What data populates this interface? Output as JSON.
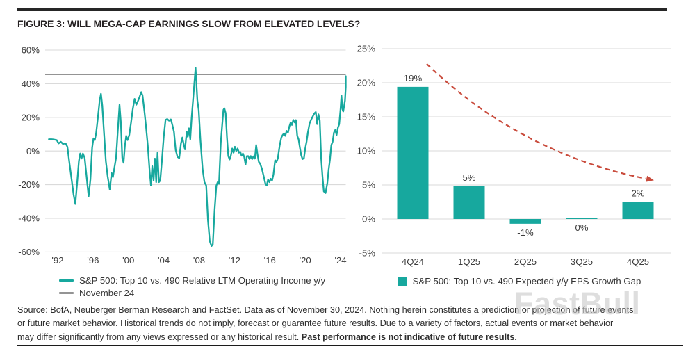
{
  "title": "FIGURE 3: WILL MEGA-CAP EARNINGS SLOW FROM ELEVATED LEVELS?",
  "watermark": "FastBull",
  "colors": {
    "teal": "#17A89E",
    "reference_gray": "#949494",
    "grid": "#DADADA",
    "arrow_red": "#C94B3C",
    "text_dark": "#2B2B2B"
  },
  "chart_data": [
    {
      "type": "line",
      "name": "sp500-top10-vs-490-relative-ltm-operating-income",
      "ylim": [
        -60,
        60
      ],
      "grid": true,
      "legend_position": "bottom-left",
      "y_ticks": [
        {
          "label": "60%",
          "value": 60
        },
        {
          "label": "40%",
          "value": 40
        },
        {
          "label": "20%",
          "value": 20
        },
        {
          "label": "0%",
          "value": 0
        },
        {
          "label": "-20%",
          "value": -20
        },
        {
          "label": "-40%",
          "value": -40
        },
        {
          "label": "-60%",
          "value": -60
        }
      ],
      "x_ticks": [
        {
          "label": "'92",
          "year": 1992
        },
        {
          "label": "'96",
          "year": 1996
        },
        {
          "label": "'00",
          "year": 2000
        },
        {
          "label": "'04",
          "year": 2004
        },
        {
          "label": "'08",
          "year": 2008
        },
        {
          "label": "'12",
          "year": 2012
        },
        {
          "label": "'16",
          "year": 2016
        },
        {
          "label": "'20",
          "year": 2020
        },
        {
          "label": "'24",
          "year": 2024
        }
      ],
      "reference_line": {
        "label": "November 24",
        "value": 45.5
      },
      "legend": [
        {
          "label": "S&P 500: Top 10 vs. 490 Relative LTM Operating Income y/y",
          "marker": "line",
          "color_key": "teal"
        },
        {
          "label": "November 24",
          "marker": "line",
          "color_key": "reference_gray"
        }
      ],
      "series": [
        {
          "name": "S&P 500: Top 10 vs. 490 Relative LTM Operating Income y/y",
          "points": [
            [
              1991.0,
              7
            ],
            [
              1991.3,
              7
            ],
            [
              1991.6,
              6.8
            ],
            [
              1991.9,
              6.5
            ],
            [
              1992.1,
              4.5
            ],
            [
              1992.35,
              5.5
            ],
            [
              1992.6,
              4.2
            ],
            [
              1992.9,
              4.6
            ],
            [
              1993.1,
              2.5
            ],
            [
              1993.35,
              -8
            ],
            [
              1993.6,
              -18
            ],
            [
              1993.8,
              -26
            ],
            [
              1994.0,
              -31.5
            ],
            [
              1994.2,
              -19
            ],
            [
              1994.4,
              -6
            ],
            [
              1994.55,
              -1.5
            ],
            [
              1994.7,
              -4.5
            ],
            [
              1994.85,
              -1.5
            ],
            [
              1995.05,
              -4
            ],
            [
              1995.25,
              -14
            ],
            [
              1995.5,
              -27
            ],
            [
              1995.7,
              -17
            ],
            [
              1995.9,
              2
            ],
            [
              1996.05,
              7.5
            ],
            [
              1996.2,
              6.5
            ],
            [
              1996.35,
              10.5
            ],
            [
              1996.55,
              20
            ],
            [
              1996.75,
              30
            ],
            [
              1996.9,
              34
            ],
            [
              1997.05,
              27
            ],
            [
              1997.25,
              10
            ],
            [
              1997.45,
              -6
            ],
            [
              1997.65,
              -15
            ],
            [
              1997.9,
              -23
            ],
            [
              1998.1,
              -13
            ],
            [
              1998.25,
              -15.5
            ],
            [
              1998.4,
              -10.5
            ],
            [
              1998.6,
              -4
            ],
            [
              1998.8,
              12
            ],
            [
              1999.0,
              27.5
            ],
            [
              1999.15,
              17
            ],
            [
              1999.3,
              -4
            ],
            [
              1999.45,
              -7
            ],
            [
              1999.6,
              3
            ],
            [
              1999.75,
              9
            ],
            [
              1999.9,
              6.5
            ],
            [
              2000.1,
              9.5
            ],
            [
              2000.3,
              17
            ],
            [
              2000.5,
              25
            ],
            [
              2000.7,
              31
            ],
            [
              2000.9,
              27.5
            ],
            [
              2001.1,
              30
            ],
            [
              2001.25,
              32
            ],
            [
              2001.45,
              35
            ],
            [
              2001.6,
              33
            ],
            [
              2001.8,
              24
            ],
            [
              2002.0,
              14
            ],
            [
              2002.2,
              3
            ],
            [
              2002.4,
              -12
            ],
            [
              2002.55,
              -20.5
            ],
            [
              2002.7,
              -9
            ],
            [
              2002.85,
              -17.5
            ],
            [
              2003.0,
              -4.5
            ],
            [
              2003.15,
              -18.5
            ],
            [
              2003.3,
              -1
            ],
            [
              2003.45,
              -18.5
            ],
            [
              2003.6,
              -17.5
            ],
            [
              2003.8,
              -5
            ],
            [
              2004.0,
              8.5
            ],
            [
              2004.2,
              18.5
            ],
            [
              2004.4,
              19
            ],
            [
              2004.6,
              18
            ],
            [
              2004.8,
              18.8
            ],
            [
              2004.95,
              16
            ],
            [
              2005.15,
              11.5
            ],
            [
              2005.35,
              0.5
            ],
            [
              2005.55,
              -3.5
            ],
            [
              2005.75,
              -4.2
            ],
            [
              2005.95,
              4.5
            ],
            [
              2006.1,
              8
            ],
            [
              2006.25,
              4
            ],
            [
              2006.4,
              1
            ],
            [
              2006.6,
              11.5
            ],
            [
              2006.72,
              8.5
            ],
            [
              2006.85,
              13.5
            ],
            [
              2007.0,
              7
            ],
            [
              2007.15,
              19.5
            ],
            [
              2007.35,
              33
            ],
            [
              2007.6,
              49.5
            ],
            [
              2007.8,
              30
            ],
            [
              2007.95,
              24.5
            ],
            [
              2008.15,
              6.5
            ],
            [
              2008.4,
              -11
            ],
            [
              2008.6,
              -18.5
            ],
            [
              2008.8,
              -20.5
            ],
            [
              2009.0,
              -41
            ],
            [
              2009.2,
              -53.5
            ],
            [
              2009.4,
              -56.5
            ],
            [
              2009.55,
              -55.5
            ],
            [
              2009.75,
              -35
            ],
            [
              2009.95,
              -20.5
            ],
            [
              2010.1,
              -18.5
            ],
            [
              2010.25,
              -19.5
            ],
            [
              2010.45,
              5
            ],
            [
              2010.6,
              15
            ],
            [
              2010.75,
              24.5
            ],
            [
              2010.85,
              25.4
            ],
            [
              2011.0,
              22.5
            ],
            [
              2011.15,
              8
            ],
            [
              2011.3,
              -3
            ],
            [
              2011.45,
              -5
            ],
            [
              2011.6,
              -2.5
            ],
            [
              2011.75,
              1.5
            ],
            [
              2011.9,
              -1
            ],
            [
              2012.05,
              2.5
            ],
            [
              2012.2,
              0
            ],
            [
              2012.35,
              1.5
            ],
            [
              2012.5,
              -1
            ],
            [
              2012.65,
              -0.5
            ],
            [
              2012.8,
              -2.8
            ],
            [
              2012.95,
              -1.5
            ],
            [
              2013.1,
              -3.5
            ],
            [
              2013.25,
              -8
            ],
            [
              2013.4,
              -3
            ],
            [
              2013.55,
              -3
            ],
            [
              2013.7,
              -4.8
            ],
            [
              2013.85,
              -3
            ],
            [
              2014.0,
              -4.8
            ],
            [
              2014.15,
              -3.2
            ],
            [
              2014.3,
              -4.5
            ],
            [
              2014.45,
              3.5
            ],
            [
              2014.6,
              -2
            ],
            [
              2014.75,
              -6.5
            ],
            [
              2014.9,
              -7.5
            ],
            [
              2015.1,
              -10.5
            ],
            [
              2015.3,
              -15
            ],
            [
              2015.5,
              -19.5
            ],
            [
              2015.65,
              -20.5
            ],
            [
              2015.8,
              -17
            ],
            [
              2015.95,
              -18.5
            ],
            [
              2016.1,
              -16.5
            ],
            [
              2016.25,
              -17.5
            ],
            [
              2016.4,
              -14
            ],
            [
              2016.6,
              -5.5
            ],
            [
              2016.75,
              -6.5
            ],
            [
              2016.9,
              -4.5
            ],
            [
              2017.1,
              3
            ],
            [
              2017.3,
              8
            ],
            [
              2017.45,
              9.5
            ],
            [
              2017.6,
              10.5
            ],
            [
              2017.75,
              9
            ],
            [
              2017.9,
              12
            ],
            [
              2018.05,
              11
            ],
            [
              2018.2,
              14.5
            ],
            [
              2018.35,
              17
            ],
            [
              2018.5,
              15.5
            ],
            [
              2018.65,
              18.5
            ],
            [
              2018.8,
              17
            ],
            [
              2018.95,
              18.4
            ],
            [
              2019.1,
              9
            ],
            [
              2019.25,
              7
            ],
            [
              2019.4,
              2
            ],
            [
              2019.55,
              -2.5
            ],
            [
              2019.7,
              -4.8
            ],
            [
              2019.85,
              -4.3
            ],
            [
              2020.0,
              1.5
            ],
            [
              2020.15,
              5.5
            ],
            [
              2020.3,
              11
            ],
            [
              2020.5,
              16.5
            ],
            [
              2020.7,
              19
            ],
            [
              2020.9,
              21
            ],
            [
              2021.05,
              22.5
            ],
            [
              2021.2,
              23.2
            ],
            [
              2021.35,
              16
            ],
            [
              2021.5,
              21.8
            ],
            [
              2021.65,
              18
            ],
            [
              2021.8,
              -4
            ],
            [
              2021.95,
              -15
            ],
            [
              2022.1,
              -24
            ],
            [
              2022.3,
              -25
            ],
            [
              2022.5,
              -19
            ],
            [
              2022.65,
              -11
            ],
            [
              2022.8,
              -5
            ],
            [
              2022.95,
              3.5
            ],
            [
              2023.1,
              5.5
            ],
            [
              2023.25,
              11
            ],
            [
              2023.4,
              12.5
            ],
            [
              2023.55,
              9.5
            ],
            [
              2023.7,
              13.8
            ],
            [
              2023.85,
              16
            ],
            [
              2024.0,
              25
            ],
            [
              2024.1,
              33
            ],
            [
              2024.2,
              25
            ],
            [
              2024.3,
              23.5
            ],
            [
              2024.5,
              30
            ],
            [
              2024.65,
              38
            ],
            [
              2024.8,
              44.5
            ]
          ]
        }
      ]
    },
    {
      "type": "bar",
      "name": "sp500-top10-vs-490-expected-eps-growth-gap",
      "categories": [
        "4Q24",
        "1Q25",
        "2Q25",
        "3Q25",
        "4Q25"
      ],
      "values": [
        19.4,
        4.8,
        -0.7,
        0.15,
        2.5
      ],
      "value_labels": [
        "19%",
        "5%",
        "-1%",
        "0%",
        "2%"
      ],
      "ylim": [
        -5,
        25
      ],
      "grid": true,
      "legend_position": "bottom-center",
      "y_ticks": [
        {
          "label": "25%",
          "value": 25
        },
        {
          "label": "20%",
          "value": 20
        },
        {
          "label": "15%",
          "value": 15
        },
        {
          "label": "10%",
          "value": 10
        },
        {
          "label": "5%",
          "value": 5
        },
        {
          "label": "0%",
          "value": 0
        },
        {
          "label": "-5%",
          "value": -5
        }
      ],
      "legend": [
        {
          "label": "S&P 500: Top 10 vs. 490 Expected y/y EPS Growth Gap",
          "marker": "square",
          "color_key": "teal"
        }
      ],
      "annotation": {
        "type": "dashed-arrow",
        "meaning": "expected declining trend",
        "color_key": "arrow_red"
      }
    }
  ],
  "footer": {
    "line1": "Source: BofA, Neuberger Berman Research and FactSet. Data as of November 30, 2024. Nothing herein constitutes a prediction or projection of future events",
    "line2": "or future market behavior. Historical trends do not imply, forecast or guarantee future results. Due to a variety of factors, actual events or market behavior",
    "line3_normal": "may differ significantly from any views expressed or any historical result. ",
    "line3_bold": "Past performance is not indicative of future results."
  }
}
